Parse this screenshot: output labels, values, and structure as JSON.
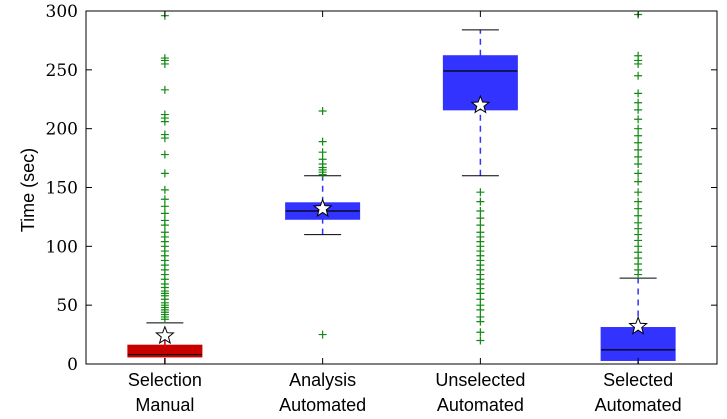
{
  "chart_data": {
    "type": "box",
    "title": "",
    "xlabel": "",
    "ylabel": "Time (sec)",
    "ylim": [
      0,
      300
    ],
    "yticks": [
      0,
      50,
      100,
      150,
      200,
      250,
      300
    ],
    "grid": false,
    "legend": "none",
    "mean_marker": "star",
    "outlier_marker": "+",
    "categories": [
      {
        "line1": "Selection",
        "line2": "Manual",
        "color": "#c80000",
        "q1": 6,
        "median": 8,
        "q3": 16,
        "whisker_low": 0,
        "whisker_high": 35,
        "mean": 24,
        "outliers": [
          38,
          40,
          42,
          44,
          46,
          48,
          50,
          52,
          55,
          58,
          60,
          62,
          65,
          68,
          72,
          76,
          80,
          84,
          88,
          92,
          96,
          100,
          104,
          108,
          112,
          118,
          122,
          128,
          134,
          140,
          148,
          162,
          178,
          192,
          195,
          206,
          209,
          212,
          233,
          255,
          258,
          260,
          296
        ]
      },
      {
        "line1": "Analysis",
        "line2": "Automated",
        "color": "#3333ff",
        "q1": 123,
        "median": 130,
        "q3": 137,
        "whisker_low": 110,
        "whisker_high": 160,
        "mean": 132,
        "outliers": [
          25,
          161,
          163,
          165,
          167,
          170,
          174,
          180,
          189,
          215
        ]
      },
      {
        "line1": "Unselected",
        "line2": "Automated",
        "color": "#3333ff",
        "q1": 216,
        "median": 249,
        "q3": 262,
        "whisker_low": 160,
        "whisker_high": 284,
        "mean": 220,
        "outliers": [
          20,
          27,
          36,
          40,
          46,
          50,
          55,
          60,
          64,
          68,
          72,
          76,
          80,
          84,
          88,
          92,
          96,
          100,
          104,
          108,
          112,
          118,
          124,
          130,
          138,
          146
        ]
      },
      {
        "line1": "Selected",
        "line2": "Automated",
        "color": "#3333ff",
        "q1": 3,
        "median": 12,
        "q3": 31,
        "whisker_low": 0,
        "whisker_high": 73,
        "mean": 32,
        "outliers": [
          76,
          80,
          85,
          90,
          95,
          100,
          105,
          110,
          115,
          120,
          126,
          132,
          138,
          146,
          155,
          162,
          170,
          176,
          182,
          188,
          194,
          200,
          208,
          216,
          222,
          230,
          245,
          255,
          258,
          262,
          297
        ]
      }
    ]
  }
}
